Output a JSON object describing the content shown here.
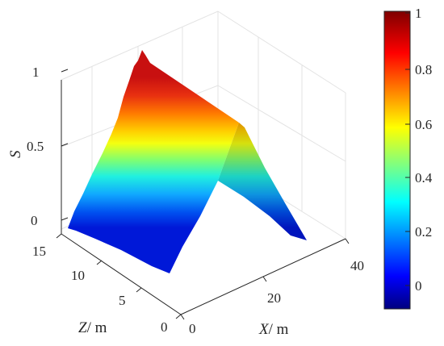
{
  "chart_data": {
    "type": "surface",
    "title": "",
    "xlabel": "X",
    "xlabel_unit": "/ m",
    "ylabel": "Z",
    "ylabel_unit": "/ m",
    "zlabel": "S",
    "x_ticks": [
      "0",
      "20",
      "40"
    ],
    "y_ticks": [
      "0",
      "5",
      "10",
      "15"
    ],
    "z_ticks": [
      "0",
      "0.5",
      "1"
    ],
    "xlim": [
      0,
      40
    ],
    "ylim": [
      0,
      15
    ],
    "zlim": [
      0,
      1
    ],
    "grid": true,
    "surface": {
      "description_shape": "ridge",
      "z_profile": [
        {
          "y": 0.8,
          "s": 0.0
        },
        {
          "y": 7.5,
          "s": 1.0
        },
        {
          "y": 14.2,
          "s": 0.0
        }
      ],
      "x_range": [
        0,
        40
      ]
    },
    "colorbar": {
      "ticks": [
        "0",
        "0.2",
        "0.4",
        "0.6",
        "0.8",
        "1"
      ],
      "range": [
        -0.1,
        1.0
      ],
      "colormap": "jet"
    }
  }
}
